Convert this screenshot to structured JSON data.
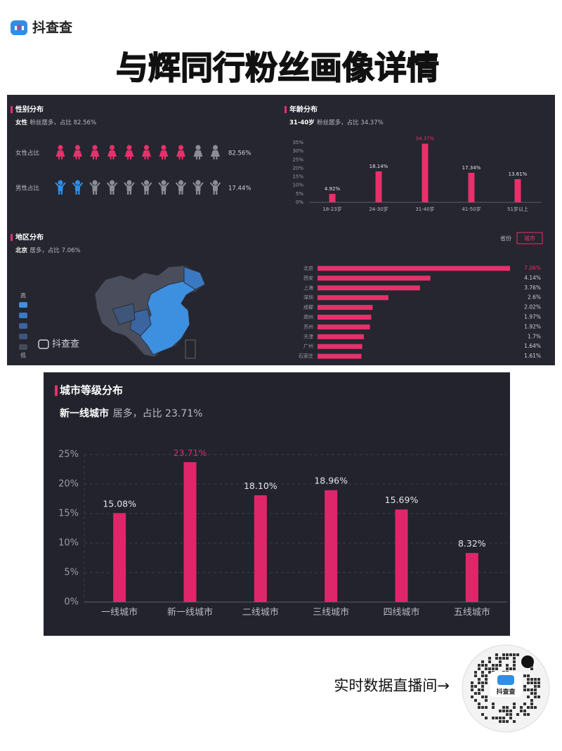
{
  "header": {
    "logo": "抖查查",
    "title": "与辉同行粉丝画像详情"
  },
  "chart_data": [
    {
      "type": "pictogram",
      "title": "性别分布",
      "subtitle_highlight": "女性",
      "subtitle": "粉丝居多，占比 82.56%",
      "categories": [
        "女性占比",
        "男性占比"
      ],
      "values": [
        82.56,
        17.44
      ],
      "value_labels": [
        "82.56%",
        "17.44%"
      ],
      "colors": [
        "#e8306b",
        "#2f8ee6"
      ],
      "empty_color": "#8a8d96"
    },
    {
      "type": "bar",
      "title": "年龄分布",
      "subtitle_highlight": "31-40岁",
      "subtitle": "粉丝居多，占比 34.37%",
      "categories": [
        "18-23岁",
        "24-30岁",
        "31-40岁",
        "41-50岁",
        "51岁以上"
      ],
      "values": [
        4.92,
        18.14,
        34.37,
        17.34,
        13.61
      ],
      "value_labels": [
        "4.92%",
        "18.14%",
        "34.37%",
        "17.34%",
        "13.61%"
      ],
      "color": "#e8306b",
      "ylim": [
        0,
        35
      ],
      "yticks": [
        {
          "value": 0,
          "label": "0%"
        },
        {
          "value": 5,
          "label": "5%"
        },
        {
          "value": 10,
          "label": "10%"
        },
        {
          "value": 15,
          "label": "15%"
        },
        {
          "value": 20,
          "label": "20%"
        },
        {
          "value": 25,
          "label": "25%"
        },
        {
          "value": 30,
          "label": "30%"
        },
        {
          "value": 35,
          "label": "35%"
        }
      ],
      "grid": false
    },
    {
      "type": "map",
      "title": "地区分布",
      "subtitle_highlight": "北京",
      "subtitle": "居多，占比 7.06%",
      "legend_labels": [
        "高",
        "低"
      ],
      "legend_colors": [
        "#3d8fe0",
        "#3a78c2",
        "#3b65a0",
        "#3d5679",
        "#474b57"
      ],
      "watermark": "抖查查"
    },
    {
      "type": "hbar",
      "tabs": [
        "省份",
        "城市"
      ],
      "active_tab": 1,
      "categories": [
        "北京",
        "西安",
        "上海",
        "深圳",
        "成都",
        "郑州",
        "苏州",
        "天津",
        "广州",
        "石家庄"
      ],
      "values": [
        7.06,
        4.14,
        3.76,
        2.6,
        2.02,
        1.97,
        1.92,
        1.7,
        1.64,
        1.61
      ],
      "value_labels": [
        "7.06%",
        "4.14%",
        "3.76%",
        "2.6%",
        "2.02%",
        "1.97%",
        "1.92%",
        "1.7%",
        "1.64%",
        "1.61%"
      ],
      "color": "#e8306b"
    },
    {
      "type": "bar",
      "title": "城市等级分布",
      "subtitle_highlight": "新一线城市",
      "subtitle": "居多，占比 23.71%",
      "categories": [
        "一线城市",
        "新一线城市",
        "二线城市",
        "三线城市",
        "四线城市",
        "五线城市"
      ],
      "values": [
        15.08,
        23.71,
        18.1,
        18.96,
        15.69,
        8.32
      ],
      "value_labels": [
        "15.08%",
        "23.71%",
        "18.10%",
        "18.96%",
        "15.69%",
        "8.32%"
      ],
      "color": "#e0266a",
      "ylim": [
        0,
        25
      ],
      "yticks": [
        {
          "value": 0,
          "label": "0%"
        },
        {
          "value": 5,
          "label": "5%"
        },
        {
          "value": 10,
          "label": "10%"
        },
        {
          "value": 15,
          "label": "15%"
        },
        {
          "value": 20,
          "label": "20%"
        },
        {
          "value": 25,
          "label": "25%"
        }
      ],
      "grid": true
    }
  ],
  "footer": {
    "cta": "实时数据直播间→",
    "qr_logo": "抖查查"
  }
}
